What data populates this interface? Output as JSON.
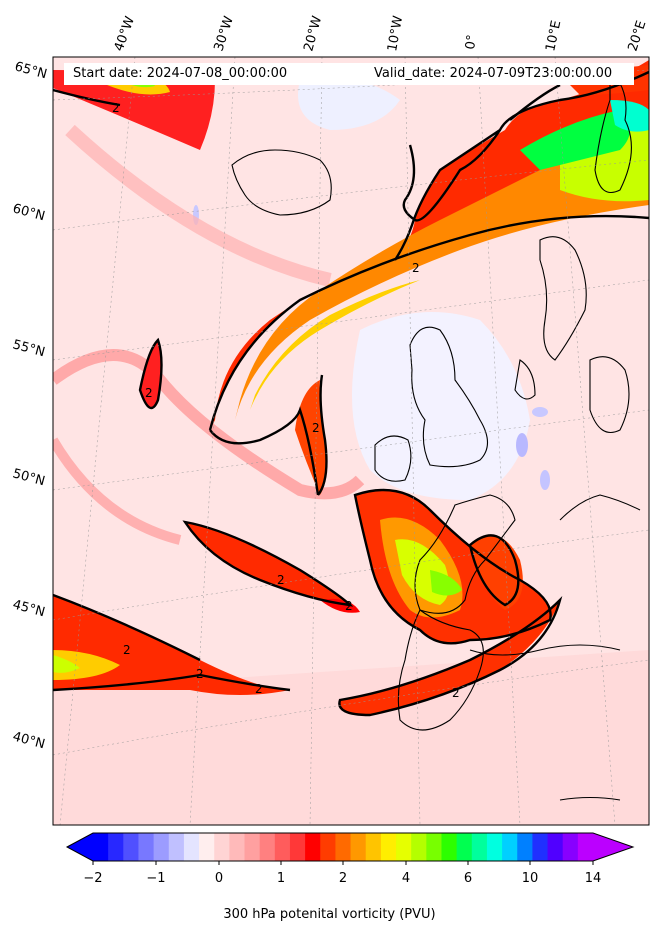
{
  "header": {
    "start_date": "Start date: 2024-07-08_00:00:00",
    "valid_date": "Valid_date: 2024-07-09T23:00:00.00"
  },
  "map": {
    "lat_labels": [
      "65°N",
      "60°N",
      "55°N",
      "50°N",
      "45°N",
      "40°N"
    ],
    "lon_labels": [
      "40°W",
      "30°W",
      "20°W",
      "10°W",
      "0°",
      "10°E",
      "20°E"
    ],
    "contour_value_label": "2",
    "colors": {
      "land_outline": "#000000",
      "background_pv": "#ffe8e8",
      "low_pv": "#eef0ff",
      "pv_2": "#ff0000",
      "pv_4": "#ff8800",
      "pv_6": "#ccff00",
      "pv_10": "#00ff44"
    }
  },
  "colorbar": {
    "label": "300 hPa potenital vorticity (PVU)",
    "ticks": [
      "−2",
      "−1",
      "0",
      "1",
      "2",
      "4",
      "6",
      "10",
      "14"
    ],
    "colors": [
      "#0000ff",
      "#2828ff",
      "#5050ff",
      "#7878ff",
      "#9c9cff",
      "#c0c0ff",
      "#e4e4ff",
      "#ffeeee",
      "#ffd4d4",
      "#ffbaba",
      "#ffa0a0",
      "#ff8080",
      "#ff5c5c",
      "#ff3838",
      "#ff0000",
      "#ff3c00",
      "#ff6a00",
      "#ff9800",
      "#ffc400",
      "#ffee00",
      "#e6ff00",
      "#b4ff00",
      "#78ff00",
      "#2cff00",
      "#00ff50",
      "#00ff9c",
      "#00ffe0",
      "#00d0ff",
      "#0080ff",
      "#2030ff",
      "#5000ff",
      "#8800ff",
      "#bb00ff"
    ]
  }
}
